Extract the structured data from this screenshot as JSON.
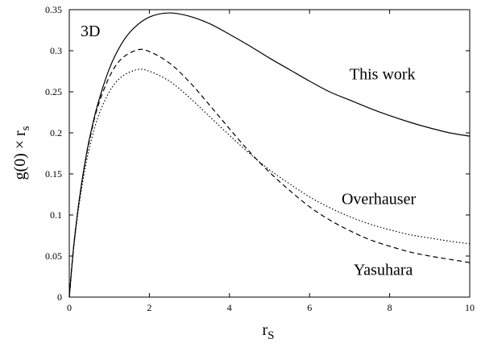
{
  "chart_data": {
    "type": "line",
    "panel_label": "3D",
    "xlabel": "r",
    "xlabel_sub": "S",
    "ylabel": "g(0) × r",
    "ylabel_sub": "s",
    "xlim": [
      0,
      10
    ],
    "ylim": [
      0,
      0.35
    ],
    "x_ticks": [
      0,
      2,
      4,
      6,
      8,
      10
    ],
    "x_tick_labels": [
      "0",
      "2",
      "4",
      "6",
      "8",
      "10"
    ],
    "y_ticks": [
      0,
      0.05,
      0.1,
      0.15,
      0.2,
      0.25,
      0.3,
      0.35
    ],
    "y_tick_labels": [
      "0",
      "0.05",
      "0.1",
      "0.15",
      "0.2",
      "0.25",
      "0.3",
      "0.35"
    ],
    "grid": false,
    "legend": "none",
    "series": [
      {
        "name": "This work",
        "label_at": [
          7.0,
          0.265
        ],
        "dash": "solid",
        "color": "#000000",
        "x": [
          0,
          0.1,
          0.2,
          0.3,
          0.4,
          0.5,
          0.7,
          1.0,
          1.3,
          1.6,
          2.0,
          2.5,
          3.0,
          3.5,
          4.0,
          4.5,
          5.0,
          5.5,
          6.0,
          6.5,
          7.0,
          7.5,
          8.0,
          8.5,
          9.0,
          9.5,
          10.0
        ],
        "y": [
          0,
          0.057,
          0.1,
          0.136,
          0.166,
          0.192,
          0.233,
          0.278,
          0.308,
          0.327,
          0.341,
          0.346,
          0.342,
          0.333,
          0.32,
          0.306,
          0.291,
          0.277,
          0.263,
          0.25,
          0.24,
          0.23,
          0.221,
          0.213,
          0.206,
          0.2,
          0.196
        ]
      },
      {
        "name": "Overhauser",
        "label_at": [
          6.8,
          0.113
        ],
        "dash": "dotted",
        "color": "#000000",
        "x": [
          0,
          0.1,
          0.2,
          0.3,
          0.4,
          0.5,
          0.7,
          1.0,
          1.3,
          1.7,
          2.0,
          2.5,
          3.0,
          3.5,
          4.0,
          4.5,
          5.0,
          5.5,
          6.0,
          6.5,
          7.0,
          7.5,
          8.0,
          8.5,
          9.0,
          9.5,
          10.0
        ],
        "y": [
          0,
          0.055,
          0.097,
          0.13,
          0.158,
          0.181,
          0.217,
          0.25,
          0.268,
          0.277,
          0.275,
          0.263,
          0.243,
          0.22,
          0.197,
          0.175,
          0.155,
          0.138,
          0.122,
          0.109,
          0.098,
          0.089,
          0.082,
          0.076,
          0.072,
          0.068,
          0.065
        ]
      },
      {
        "name": "Yasuhara",
        "label_at": [
          7.1,
          0.027
        ],
        "dash": "dashed",
        "color": "#000000",
        "x": [
          0,
          0.1,
          0.2,
          0.3,
          0.4,
          0.5,
          0.7,
          1.0,
          1.3,
          1.7,
          2.0,
          2.5,
          3.0,
          3.5,
          4.0,
          4.5,
          5.0,
          5.5,
          6.0,
          6.5,
          7.0,
          7.5,
          8.0,
          8.5,
          9.0,
          9.5,
          10.0
        ],
        "y": [
          0,
          0.057,
          0.1,
          0.135,
          0.165,
          0.19,
          0.23,
          0.268,
          0.29,
          0.301,
          0.299,
          0.285,
          0.262,
          0.234,
          0.205,
          0.177,
          0.152,
          0.13,
          0.11,
          0.094,
          0.081,
          0.07,
          0.062,
          0.055,
          0.05,
          0.046,
          0.042
        ]
      }
    ]
  }
}
